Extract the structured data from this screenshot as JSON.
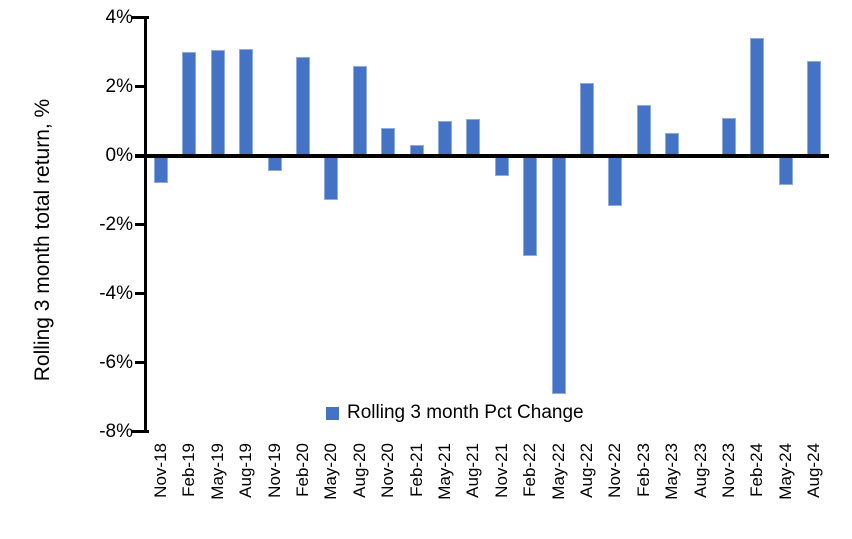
{
  "chart_data": {
    "type": "bar",
    "title": "",
    "xlabel": "",
    "ylabel": "Rolling 3 month total return, %",
    "ylim": [
      -8,
      4
    ],
    "yticks": [
      4,
      2,
      0,
      -2,
      -4,
      -6,
      -8
    ],
    "ytick_labels": [
      "4%",
      "2%",
      "0%",
      "-2%",
      "-4%",
      "-6%",
      "-8%"
    ],
    "grid": false,
    "legend_position": "bottom-center",
    "categories": [
      "Nov-18",
      "Feb-19",
      "May-19",
      "Aug-19",
      "Nov-19",
      "Feb-20",
      "May-20",
      "Aug-20",
      "Nov-20",
      "Feb-21",
      "May-21",
      "Aug-21",
      "Nov-21",
      "Feb-22",
      "May-22",
      "Aug-22",
      "Nov-22",
      "Feb-23",
      "May-23",
      "Aug-23",
      "Nov-23",
      "Feb-24",
      "May-24",
      "Aug-24"
    ],
    "series": [
      {
        "name": "Rolling 3 month Pct Change",
        "values": [
          -0.8,
          3.0,
          3.05,
          3.1,
          -0.45,
          2.85,
          -1.3,
          2.6,
          0.8,
          0.3,
          1.0,
          1.05,
          -0.6,
          -2.9,
          -6.9,
          2.1,
          -1.45,
          1.45,
          0.65,
          0.0,
          1.1,
          3.4,
          -0.85,
          2.75
        ]
      }
    ],
    "bar_color": "#4472C4",
    "bar_border_color": "#8FAADC",
    "axis_color": "#000000",
    "text_color": "#000000"
  }
}
